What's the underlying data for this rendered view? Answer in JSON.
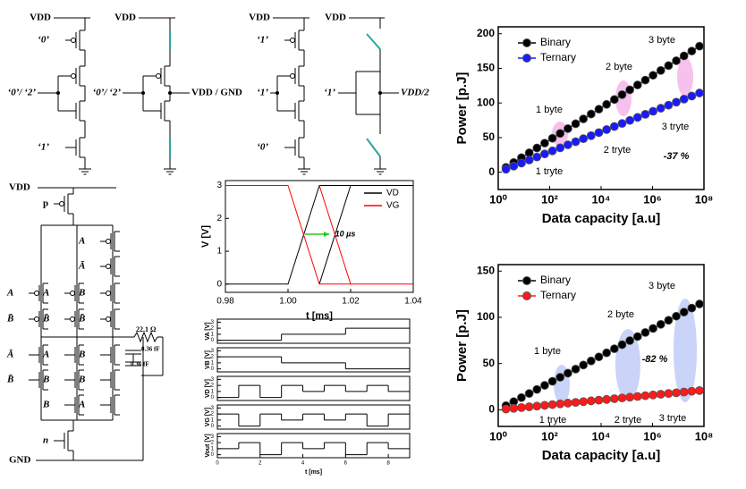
{
  "circuits": {
    "top": [
      {
        "supply": "VDD",
        "inputs": [
          "‘0’",
          "‘0’/ ‘2’",
          "‘1’"
        ]
      },
      {
        "supply": "VDD",
        "input": "‘0’/ ‘2’",
        "output": "VDD / GND"
      },
      {
        "supply": "VDD",
        "inputs": [
          "‘1’",
          "‘1’",
          "‘0’"
        ]
      },
      {
        "supply": "VDD",
        "input": "‘1’",
        "output": "VDD/2"
      }
    ],
    "logic": {
      "supply": "VDD",
      "ground": "GND",
      "pmos": "p",
      "nmos": "n",
      "gates": [
        "A",
        "Ā",
        "B",
        "B̄",
        "A",
        "A",
        "B̄",
        "B̄",
        "Ā",
        "A",
        "B",
        "B̄",
        "B",
        "B",
        "B",
        "A"
      ],
      "resistor": "22.1 Ω",
      "capacitors": [
        "0.36 fF",
        "0.36 fF"
      ]
    }
  },
  "chart_data": [
    {
      "type": "line",
      "xlabel": "Data capacity [a.u]",
      "ylabel": "Power [p.J]",
      "xlog": true,
      "markers": true,
      "legend": "upper left",
      "xlim": [
        1,
        100000000
      ],
      "xticks": [
        {
          "value": 1,
          "label": "10⁰"
        },
        {
          "value": 100,
          "label": "10²"
        },
        {
          "value": 10000,
          "label": "10⁴"
        },
        {
          "value": 1000000,
          "label": "10⁶"
        },
        {
          "value": 100000000,
          "label": "10⁸"
        }
      ],
      "ylim": [
        -25,
        210
      ],
      "yticks": [
        0,
        50,
        100,
        150,
        200
      ],
      "x": [
        2,
        4,
        8,
        16,
        32,
        64,
        128,
        256,
        512,
        1024,
        2048,
        4096,
        8192,
        16384,
        32768,
        65536,
        131072,
        262144,
        524288,
        1048576,
        2097152,
        4194304,
        8388608,
        16777216,
        33554432,
        67108864
      ],
      "series": [
        {
          "name": "Binary",
          "color": "#000000",
          "values": [
            7,
            14,
            21,
            28,
            35,
            42,
            49,
            56,
            63,
            70,
            77,
            84,
            91,
            98,
            105,
            112,
            119,
            126,
            133,
            140,
            147,
            154,
            161,
            168,
            175,
            182
          ]
        },
        {
          "name": "Ternary",
          "color": "#1a1aff",
          "values": [
            4.4,
            8.8,
            13.2,
            17.6,
            22,
            26.4,
            30.8,
            35.2,
            39.6,
            44,
            48.4,
            52.8,
            57.2,
            61.6,
            66,
            70.4,
            74.8,
            79.2,
            83.6,
            88,
            92.4,
            96.8,
            101.2,
            105.6,
            110,
            114.4
          ]
        }
      ],
      "annotations": [
        "1 byte",
        "2 byte",
        "3 byte",
        "1 tryte",
        "2 tryte",
        "3 tryte",
        "-37 %"
      ]
    },
    {
      "type": "line",
      "xlabel": "Data capacity [a.u]",
      "ylabel": "Power [p.J]",
      "xlog": true,
      "markers": true,
      "legend": "upper left",
      "xlim": [
        1,
        100000000
      ],
      "xticks": [
        {
          "value": 1,
          "label": "10⁰"
        },
        {
          "value": 100,
          "label": "10²"
        },
        {
          "value": 10000,
          "label": "10⁴"
        },
        {
          "value": 1000000,
          "label": "10⁶"
        },
        {
          "value": 100000000,
          "label": "10⁸"
        }
      ],
      "ylim": [
        -18,
        157
      ],
      "yticks": [
        0,
        50,
        100,
        150
      ],
      "x": [
        2,
        4,
        8,
        16,
        32,
        64,
        128,
        256,
        512,
        1024,
        2048,
        4096,
        8192,
        16384,
        32768,
        65536,
        131072,
        262144,
        524288,
        1048576,
        2097152,
        4194304,
        8388608,
        16777216,
        33554432,
        67108864
      ],
      "series": [
        {
          "name": "Binary",
          "color": "#000000",
          "values": [
            4.4,
            8.8,
            13.2,
            17.6,
            22,
            26.4,
            30.8,
            35.2,
            39.6,
            44,
            48.4,
            52.8,
            57.2,
            61.6,
            66,
            70.4,
            74.8,
            79.2,
            83.6,
            88,
            92.4,
            96.8,
            101.2,
            105.6,
            110,
            114.4
          ]
        },
        {
          "name": "Ternary",
          "color": "#ff1a1a",
          "values": [
            0.8,
            1.6,
            2.4,
            3.2,
            4,
            4.8,
            5.6,
            6.4,
            7.2,
            8,
            8.8,
            9.6,
            10.4,
            11.2,
            12,
            12.8,
            13.6,
            14.4,
            15.2,
            16,
            16.8,
            17.6,
            18.4,
            19.2,
            20,
            20.8
          ]
        }
      ],
      "annotations": [
        "1 byte",
        "2 byte",
        "3 byte",
        "1 tryte",
        "2 tryte",
        "3 tryte",
        "-82 %"
      ]
    },
    {
      "type": "line",
      "xlabel": "t [ms]",
      "ylabel": "V [V]",
      "legend": "upper right",
      "xlim": [
        0.98,
        1.04
      ],
      "xticks": [
        {
          "value": 0.98,
          "label": "0.98"
        },
        {
          "value": 1,
          "label": "1.00"
        },
        {
          "value": 1.02,
          "label": "1.02"
        },
        {
          "value": 1.04,
          "label": "1.04"
        }
      ],
      "ylim": [
        -0.25,
        3.15
      ],
      "yticks": [
        0,
        1,
        2,
        3
      ],
      "series": [
        {
          "name": "VD",
          "color": "#000000",
          "x": [
            0.98,
            1,
            1.01,
            1.04,
            1.01,
            1.01,
            1.02
          ],
          "values": [
            0,
            0,
            3,
            3,
            null,
            0,
            3
          ]
        },
        {
          "name": "VG",
          "color": "#ff0000",
          "x": [
            0.98,
            1,
            1.01,
            1.04,
            1.01,
            1.01,
            1.02
          ],
          "values": [
            3,
            3,
            0,
            0,
            null,
            3,
            0
          ]
        }
      ],
      "annotations": [
        "10 µs"
      ]
    },
    {
      "type": "step",
      "ylabel": "VA [V]",
      "xlim": [
        0,
        9
      ],
      "ylim": [
        -0.5,
        3.5
      ],
      "yticks": [
        0,
        1,
        2,
        3
      ],
      "color": "#000000",
      "x": [
        0,
        3,
        6
      ],
      "values": [
        0,
        1,
        2
      ]
    },
    {
      "type": "step",
      "ylabel": "VB [V]",
      "xlim": [
        0,
        9
      ],
      "ylim": [
        -0.5,
        3.5
      ],
      "yticks": [
        0,
        1,
        2,
        3
      ],
      "color": "#000000",
      "x": [
        0,
        3,
        6
      ],
      "values": [
        2,
        1,
        0
      ]
    },
    {
      "type": "step",
      "ylabel": "VD [V]",
      "xlim": [
        0,
        9
      ],
      "ylim": [
        -0.5,
        3.5
      ],
      "yticks": [
        0,
        1,
        2,
        3
      ],
      "color": "#000000",
      "x": [
        0,
        1,
        2,
        3,
        4,
        5,
        6,
        7,
        8
      ],
      "values": [
        0,
        2,
        0,
        2,
        1,
        2,
        1,
        2,
        1
      ]
    },
    {
      "type": "step",
      "ylabel": "VG [V]",
      "xlim": [
        0,
        9
      ],
      "ylim": [
        -0.5,
        3.5
      ],
      "yticks": [
        0,
        1,
        2,
        3
      ],
      "color": "#000000",
      "x": [
        0,
        1,
        2,
        3,
        4,
        5,
        6,
        7,
        8
      ],
      "values": [
        2,
        0,
        2,
        1,
        2,
        1,
        2,
        0,
        2
      ]
    },
    {
      "type": "step",
      "ylabel": "Vout [V]",
      "xlabel": "t [ms]",
      "xlim": [
        0,
        9
      ],
      "ylim": [
        -0.5,
        3.5
      ],
      "yticks": [
        0,
        1,
        2,
        3
      ],
      "xticks": [
        0,
        2,
        4,
        6,
        8
      ],
      "color": "#000000",
      "x": [
        0,
        1,
        2,
        3,
        4,
        5,
        6,
        7,
        8
      ],
      "values": [
        1,
        2,
        0,
        2,
        1,
        2,
        0,
        2,
        1
      ]
    }
  ]
}
